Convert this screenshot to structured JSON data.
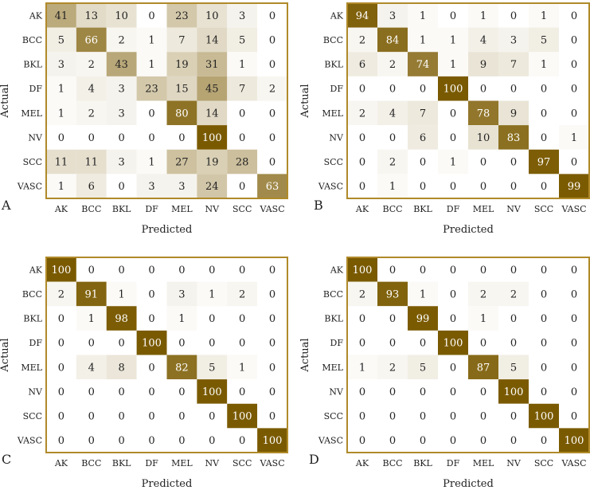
{
  "chart_data": [
    {
      "type": "heatmap",
      "panel_label": "A",
      "xlabel": "Predicted",
      "ylabel": "Actual",
      "x_categories": [
        "AK",
        "BCC",
        "BKL",
        "DF",
        "MEL",
        "NV",
        "SCC",
        "VASC"
      ],
      "y_categories": [
        "AK",
        "BCC",
        "BKL",
        "DF",
        "MEL",
        "NV",
        "SCC",
        "VASC"
      ],
      "values": [
        [
          41,
          13,
          10,
          0,
          23,
          10,
          3,
          0
        ],
        [
          5,
          66,
          2,
          1,
          7,
          14,
          5,
          0
        ],
        [
          3,
          2,
          43,
          1,
          19,
          31,
          1,
          0
        ],
        [
          1,
          4,
          3,
          23,
          15,
          45,
          7,
          2
        ],
        [
          1,
          2,
          3,
          0,
          80,
          14,
          0,
          0
        ],
        [
          0,
          0,
          0,
          0,
          0,
          100,
          0,
          0
        ],
        [
          11,
          11,
          3,
          1,
          27,
          19,
          28,
          0
        ],
        [
          1,
          6,
          0,
          3,
          3,
          24,
          0,
          63
        ]
      ],
      "value_range": [
        0,
        100
      ]
    },
    {
      "type": "heatmap",
      "panel_label": "B",
      "xlabel": "Predicted",
      "ylabel": "Actual",
      "x_categories": [
        "AK",
        "BCC",
        "BKL",
        "DF",
        "MEL",
        "NV",
        "SCC",
        "VASC"
      ],
      "y_categories": [
        "AK",
        "BCC",
        "BKL",
        "DF",
        "MEL",
        "NV",
        "SCC",
        "VASC"
      ],
      "values": [
        [
          94,
          3,
          1,
          0,
          1,
          0,
          1,
          0
        ],
        [
          2,
          84,
          1,
          1,
          4,
          3,
          5,
          0
        ],
        [
          6,
          2,
          74,
          1,
          9,
          7,
          1,
          0
        ],
        [
          0,
          0,
          0,
          100,
          0,
          0,
          0,
          0
        ],
        [
          2,
          4,
          7,
          0,
          78,
          9,
          0,
          0
        ],
        [
          0,
          0,
          6,
          0,
          10,
          83,
          0,
          1
        ],
        [
          0,
          2,
          0,
          1,
          0,
          0,
          97,
          0
        ],
        [
          0,
          1,
          0,
          0,
          0,
          0,
          0,
          99
        ]
      ],
      "value_range": [
        0,
        100
      ]
    },
    {
      "type": "heatmap",
      "panel_label": "C",
      "xlabel": "Predicted",
      "ylabel": "Actual",
      "x_categories": [
        "AK",
        "BCC",
        "BKL",
        "DF",
        "MEL",
        "NV",
        "SCC",
        "VASC"
      ],
      "y_categories": [
        "AK",
        "BCC",
        "BKL",
        "DF",
        "MEL",
        "NV",
        "SCC",
        "VASC"
      ],
      "values": [
        [
          100,
          0,
          0,
          0,
          0,
          0,
          0,
          0
        ],
        [
          2,
          91,
          1,
          0,
          3,
          1,
          2,
          0
        ],
        [
          0,
          1,
          98,
          0,
          1,
          0,
          0,
          0
        ],
        [
          0,
          0,
          0,
          100,
          0,
          0,
          0,
          0
        ],
        [
          0,
          4,
          8,
          0,
          82,
          5,
          1,
          0
        ],
        [
          0,
          0,
          0,
          0,
          0,
          100,
          0,
          0
        ],
        [
          0,
          0,
          0,
          0,
          0,
          0,
          100,
          0
        ],
        [
          0,
          0,
          0,
          0,
          0,
          0,
          0,
          100
        ]
      ],
      "value_range": [
        0,
        100
      ]
    },
    {
      "type": "heatmap",
      "panel_label": "D",
      "xlabel": "Predicted",
      "ylabel": "Actual",
      "x_categories": [
        "AK",
        "BCC",
        "BKL",
        "DF",
        "MEL",
        "NV",
        "SCC",
        "VASC"
      ],
      "y_categories": [
        "AK",
        "BCC",
        "BKL",
        "DF",
        "MEL",
        "NV",
        "SCC",
        "VASC"
      ],
      "values": [
        [
          100,
          0,
          0,
          0,
          0,
          0,
          0,
          0
        ],
        [
          2,
          93,
          1,
          0,
          2,
          2,
          0,
          0
        ],
        [
          0,
          0,
          99,
          0,
          1,
          0,
          0,
          0
        ],
        [
          0,
          0,
          0,
          100,
          0,
          0,
          0,
          0
        ],
        [
          1,
          2,
          5,
          0,
          87,
          5,
          0,
          0
        ],
        [
          0,
          0,
          0,
          0,
          0,
          100,
          0,
          0
        ],
        [
          0,
          0,
          0,
          0,
          0,
          0,
          100,
          0
        ],
        [
          0,
          0,
          0,
          0,
          0,
          0,
          0,
          100
        ]
      ],
      "value_range": [
        0,
        100
      ]
    }
  ],
  "colors": {
    "low": "#ffffff",
    "high": "#7a5a00",
    "border": "#b08a2a",
    "dark_text": "#ffffff",
    "light_text": "#222222"
  }
}
